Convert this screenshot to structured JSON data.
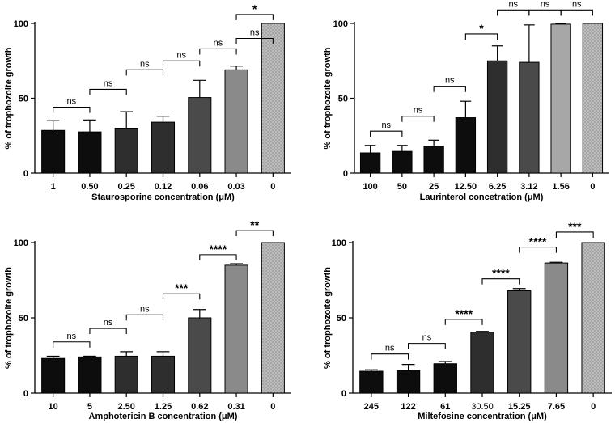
{
  "colors": {
    "black": "#0d0d0d",
    "dark": "#2e2e2e",
    "mid_dark": "#4a4a4a",
    "grey": "#8a8a8a",
    "light_grey": "#a7a7a7",
    "dotted": "#bdbdbd",
    "axis": "#000000"
  },
  "chart_data": [
    {
      "type": "bar",
      "xlabel": "Staurosporine concentration (μM)",
      "ylabel": "% of trophozoite growth",
      "ylim": [
        0,
        100
      ],
      "yticks": [
        "0",
        "50",
        "100"
      ],
      "categories": [
        "1",
        "0.50",
        "0.25",
        "0.12",
        "0.06",
        "0.03",
        "0"
      ],
      "values": [
        28.5,
        27.5,
        30,
        34,
        50.5,
        69,
        100
      ],
      "errors": [
        6.5,
        8,
        11,
        4,
        11.5,
        2.5,
        0
      ],
      "fills": [
        "black",
        "black",
        "dark",
        "dark",
        "mid_dark",
        "grey",
        "dotted"
      ],
      "brackets": [
        {
          "from": 0,
          "to": 1,
          "label": "ns",
          "level": 44
        },
        {
          "from": 1,
          "to": 2,
          "label": "ns",
          "level": 56
        },
        {
          "from": 2,
          "to": 3,
          "label": "ns",
          "level": 69
        },
        {
          "from": 3,
          "to": 4,
          "label": "ns",
          "level": 75
        },
        {
          "from": 4,
          "to": 5,
          "label": "ns",
          "level": 83
        },
        {
          "from": 5,
          "to": 6,
          "label": "ns",
          "level": 90
        },
        {
          "from": 5,
          "to": 6,
          "label": "*",
          "level": 106
        }
      ]
    },
    {
      "type": "bar",
      "xlabel": "Laurinterol concetration (μM)",
      "ylabel": "% of trophozoite growth",
      "ylim": [
        0,
        100
      ],
      "yticks": [
        "0",
        "50",
        "100"
      ],
      "categories": [
        "100",
        "50",
        "25",
        "12.50",
        "6.25",
        "3.12",
        "1.56",
        "0"
      ],
      "values": [
        13.5,
        14.5,
        18,
        37,
        75,
        74,
        99.5,
        100
      ],
      "errors": [
        5,
        4,
        4,
        11,
        10,
        25,
        0.5,
        0
      ],
      "fills": [
        "black",
        "black",
        "black",
        "black",
        "dark",
        "mid_dark",
        "light_grey",
        "dotted"
      ],
      "brackets": [
        {
          "from": 0,
          "to": 1,
          "label": "ns",
          "level": 28
        },
        {
          "from": 1,
          "to": 2,
          "label": "ns",
          "level": 38
        },
        {
          "from": 2,
          "to": 3,
          "label": "ns",
          "level": 58
        },
        {
          "from": 3,
          "to": 4,
          "label": "*",
          "level": 93
        },
        {
          "from": 4,
          "to": 5,
          "label": "ns",
          "level": 109
        },
        {
          "from": 5,
          "to": 6,
          "label": "ns",
          "level": 109
        },
        {
          "from": 6,
          "to": 7,
          "label": "ns",
          "level": 109
        }
      ]
    },
    {
      "type": "bar",
      "xlabel": "Amphotericin B concentration (μM)",
      "ylabel": "% of trophozoite growth",
      "ylim": [
        0,
        100
      ],
      "yticks": [
        "0",
        "50",
        "100"
      ],
      "categories": [
        "10",
        "5",
        "2.50",
        "1.25",
        "0.62",
        "0.31",
        "0"
      ],
      "values": [
        23,
        24,
        24.5,
        24.5,
        50,
        85,
        100
      ],
      "errors": [
        1.5,
        0.5,
        3,
        3,
        5.5,
        1,
        0
      ],
      "fills": [
        "black",
        "black",
        "dark",
        "dark",
        "mid_dark",
        "grey",
        "dotted"
      ],
      "brackets": [
        {
          "from": 0,
          "to": 1,
          "label": "ns",
          "level": 34
        },
        {
          "from": 1,
          "to": 2,
          "label": "ns",
          "level": 43
        },
        {
          "from": 2,
          "to": 3,
          "label": "ns",
          "level": 52
        },
        {
          "from": 3,
          "to": 4,
          "label": "***",
          "level": 66
        },
        {
          "from": 4,
          "to": 5,
          "label": "****",
          "level": 92
        },
        {
          "from": 5,
          "to": 6,
          "label": "**",
          "level": 108
        }
      ]
    },
    {
      "type": "bar",
      "xlabel": "Miltefosine concentration (μM)",
      "ylabel": "% of trophozoite growth",
      "ylim": [
        0,
        100
      ],
      "yticks": [
        "0",
        "50",
        "100"
      ],
      "categories": [
        "245",
        "122",
        "61",
        "30.50",
        "15.25",
        "7.65",
        "0"
      ],
      "values": [
        14.5,
        15,
        19.5,
        40.5,
        68,
        86.5,
        100
      ],
      "errors": [
        1,
        4,
        1.5,
        0.5,
        1.5,
        0.5,
        0
      ],
      "fills": [
        "black",
        "black",
        "black",
        "dark",
        "mid_dark",
        "grey",
        "dotted"
      ],
      "brackets": [
        {
          "from": 0,
          "to": 1,
          "label": "ns",
          "level": 26
        },
        {
          "from": 1,
          "to": 2,
          "label": "ns",
          "level": 33
        },
        {
          "from": 2,
          "to": 3,
          "label": "****",
          "level": 49
        },
        {
          "from": 3,
          "to": 4,
          "label": "****",
          "level": 76
        },
        {
          "from": 4,
          "to": 5,
          "label": "****",
          "level": 97
        },
        {
          "from": 5,
          "to": 6,
          "label": "***",
          "level": 107
        }
      ]
    }
  ]
}
